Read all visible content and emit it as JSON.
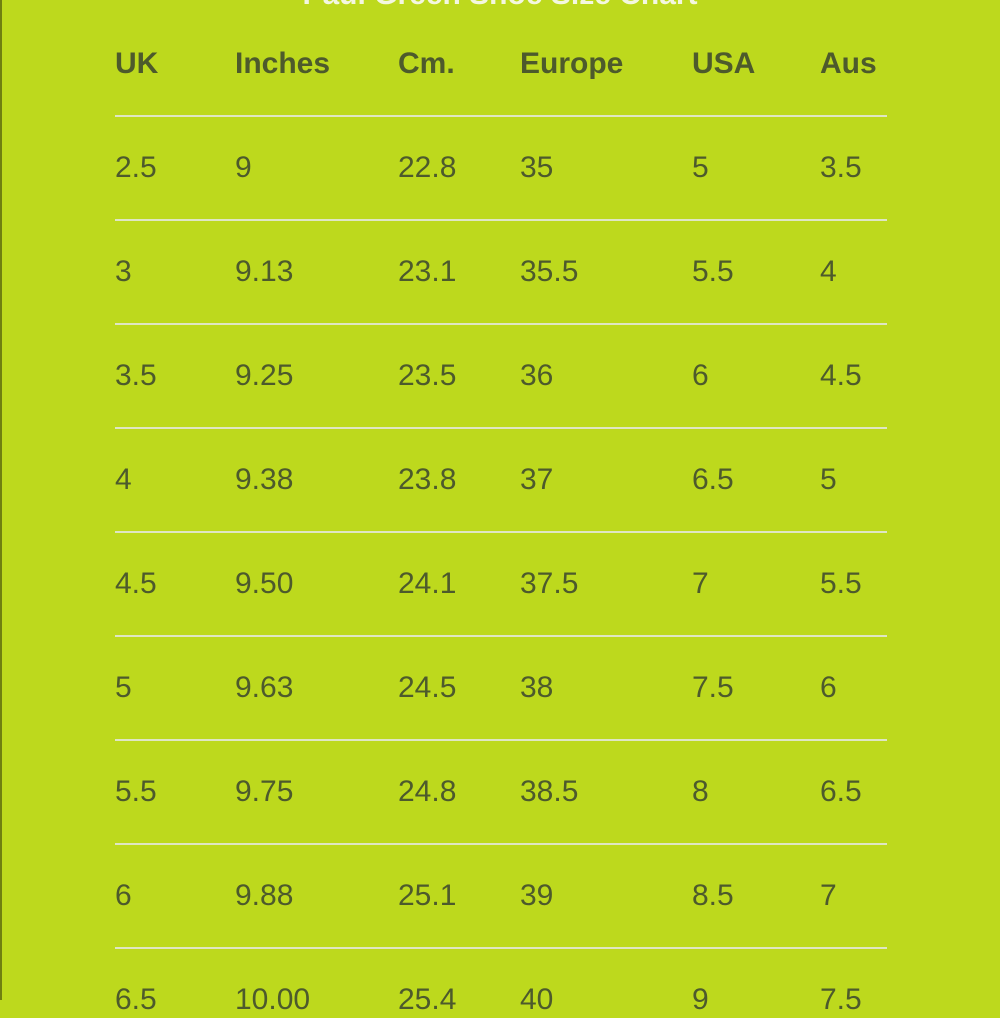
{
  "title": "Paul Green Shoe Size Chart",
  "table": {
    "headers": [
      "UK",
      "Inches",
      "Cm.",
      "Europe",
      "USA",
      "Aus"
    ],
    "rows": [
      [
        "2.5",
        "9",
        "22.8",
        "35",
        "5",
        "3.5"
      ],
      [
        "3",
        "9.13",
        "23.1",
        "35.5",
        "5.5",
        "4"
      ],
      [
        "3.5",
        "9.25",
        "23.5",
        "36",
        "6",
        "4.5"
      ],
      [
        "4",
        "9.38",
        "23.8",
        "37",
        "6.5",
        "5"
      ],
      [
        "4.5",
        "9.50",
        "24.1",
        "37.5",
        "7",
        "5.5"
      ],
      [
        "5",
        "9.63",
        "24.5",
        "38",
        "7.5",
        "6"
      ],
      [
        "5.5",
        "9.75",
        "24.8",
        "38.5",
        "8",
        "6.5"
      ],
      [
        "6",
        "9.88",
        "25.1",
        "39",
        "8.5",
        "7"
      ],
      [
        "6.5",
        "10.00",
        "25.4",
        "40",
        "9",
        "7.5"
      ]
    ]
  }
}
